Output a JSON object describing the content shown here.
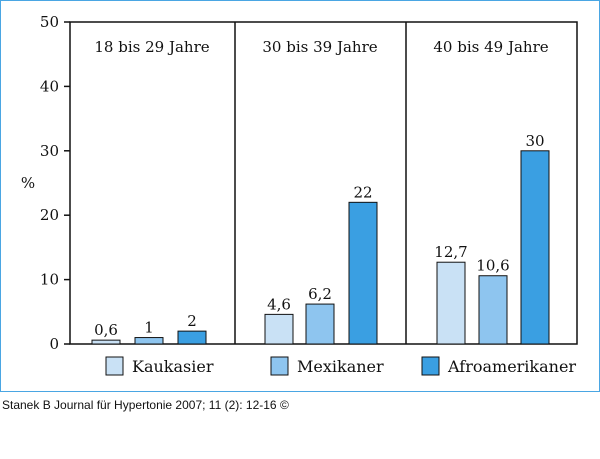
{
  "chart_data": {
    "type": "bar",
    "ylabel": "%",
    "ylim": [
      0,
      50
    ],
    "yticks": [
      0,
      10,
      20,
      30,
      40,
      50
    ],
    "grid": false,
    "legend_position": "bottom",
    "groups": [
      "18 bis 29 Jahre",
      "30 bis 39 Jahre",
      "40 bis 49 Jahre"
    ],
    "series": [
      {
        "name": "Kaukasier",
        "color": "#c9e1f5",
        "values": [
          0.6,
          4.6,
          12.7
        ],
        "labels": [
          "0,6",
          "4,6",
          "12,7"
        ]
      },
      {
        "name": "Mexikaner",
        "color": "#8ec5ef",
        "values": [
          1,
          6.2,
          10.6
        ],
        "labels": [
          "1",
          "6,2",
          "10,6"
        ]
      },
      {
        "name": "Afroamerikaner",
        "color": "#3a9fe2",
        "values": [
          2,
          22,
          30
        ],
        "labels": [
          "2",
          "22",
          "30"
        ]
      }
    ]
  },
  "caption": "Stanek B Journal für Hypertonie 2007; 11 (2): 12-16 ©"
}
